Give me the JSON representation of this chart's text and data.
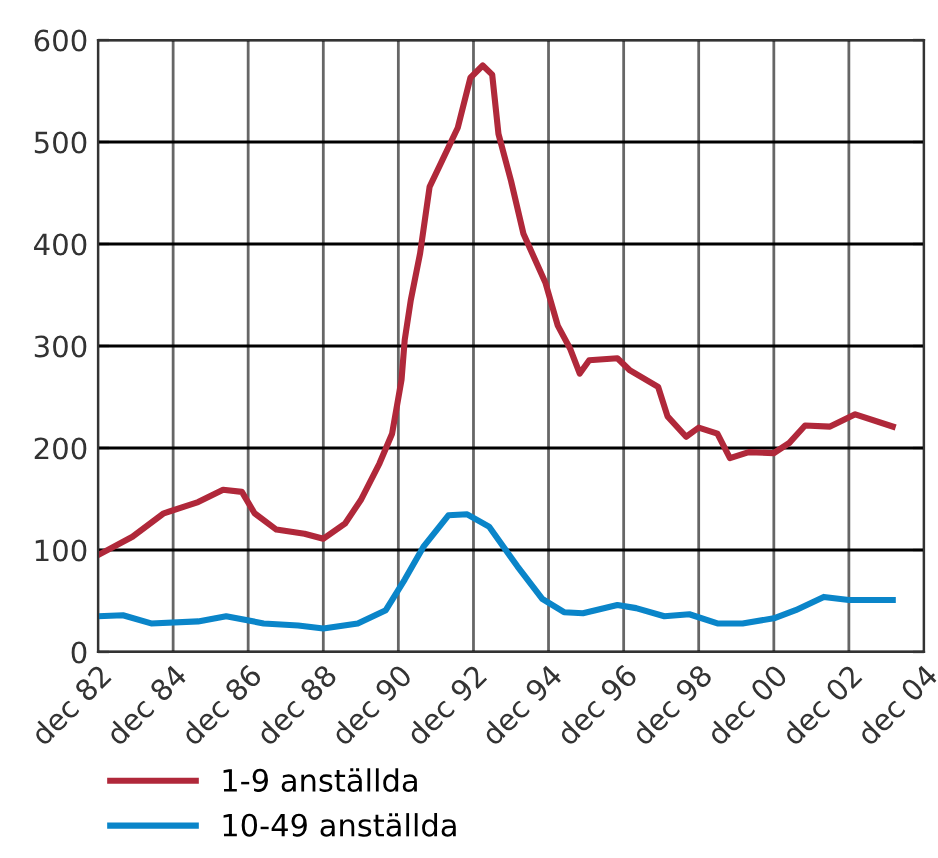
{
  "chart_data": {
    "type": "line",
    "x": [
      "1982-12",
      "1983-11",
      "1984-09",
      "1985-08",
      "1986-04",
      "1986-10",
      "1987-02",
      "1987-09",
      "1988-06",
      "1988-12",
      "1989-07",
      "1989-12",
      "1990-06",
      "1990-10",
      "1991-01",
      "1991-02",
      "1991-04",
      "1991-07",
      "1991-10",
      "1992-02",
      "1992-07",
      "1992-11",
      "1993-03",
      "1993-06",
      "1993-08",
      "1993-12",
      "1994-04",
      "1994-11",
      "1995-03",
      "1995-07",
      "1995-10",
      "1996-01",
      "1996-10",
      "1997-02",
      "1997-11",
      "1998-02",
      "1998-08",
      "1998-12",
      "1999-06",
      "1999-10",
      "2000-04",
      "2000-12",
      "2001-05",
      "2001-10",
      "2002-06",
      "2003-02",
      "2004-02"
    ],
    "series": [
      {
        "name": "1-9 anställda",
        "color": "#b0283a",
        "values": [
          95,
          113,
          136,
          147,
          159,
          157,
          136,
          120,
          116,
          111,
          126,
          149,
          185,
          214,
          267,
          306,
          345,
          391,
          456,
          482,
          514,
          563,
          575,
          566,
          508,
          462,
          410,
          362,
          320,
          297,
          273,
          286,
          288,
          276,
          260,
          231,
          211,
          220,
          214,
          190,
          196,
          195,
          205,
          222,
          221,
          233,
          221
        ]
      },
      {
        "name": "10-49 anställda",
        "color": "#0a85c9",
        "x": [
          "1982-12",
          "1983-08",
          "1984-05",
          "1985-08",
          "1986-05",
          "1987-05",
          "1988-04",
          "1988-12",
          "1989-11",
          "1990-08",
          "1991-02",
          "1991-08",
          "1992-04",
          "1992-10",
          "1993-05",
          "1994-02",
          "1994-10",
          "1995-05",
          "1995-11",
          "1996-10",
          "1997-04",
          "1998-01",
          "1998-09",
          "1999-06",
          "2000-02",
          "2000-12",
          "2001-07",
          "2002-04",
          "2002-12",
          "2004-02"
        ],
        "values": [
          35,
          36,
          28,
          30,
          35,
          28,
          26,
          23,
          28,
          41,
          71,
          103,
          134,
          135,
          123,
          84,
          52,
          39,
          38,
          46,
          43,
          35,
          37,
          28,
          28,
          33,
          41,
          54,
          51,
          51
        ]
      }
    ],
    "xlim": [
      "1982-12",
      "2004-12"
    ],
    "xticks": [
      {
        "value": "1982-12",
        "label": "dec 82"
      },
      {
        "value": "1984-12",
        "label": "dec 84"
      },
      {
        "value": "1986-12",
        "label": "dec 86"
      },
      {
        "value": "1988-12",
        "label": "dec 88"
      },
      {
        "value": "1990-12",
        "label": "dec 90"
      },
      {
        "value": "1992-12",
        "label": "dec 92"
      },
      {
        "value": "1994-12",
        "label": "dec 94"
      },
      {
        "value": "1996-12",
        "label": "dec 96"
      },
      {
        "value": "1998-12",
        "label": "dec 98"
      },
      {
        "value": "2000-12",
        "label": "dec 00"
      },
      {
        "value": "2002-12",
        "label": "dec 02"
      },
      {
        "value": "2004-12",
        "label": "dec 04"
      }
    ],
    "ylim": [
      0,
      600
    ],
    "yticks": [
      0,
      100,
      200,
      300,
      400,
      500,
      600
    ],
    "grid": true,
    "legend": "bottom left",
    "marker": "none",
    "line_style": "solid"
  }
}
